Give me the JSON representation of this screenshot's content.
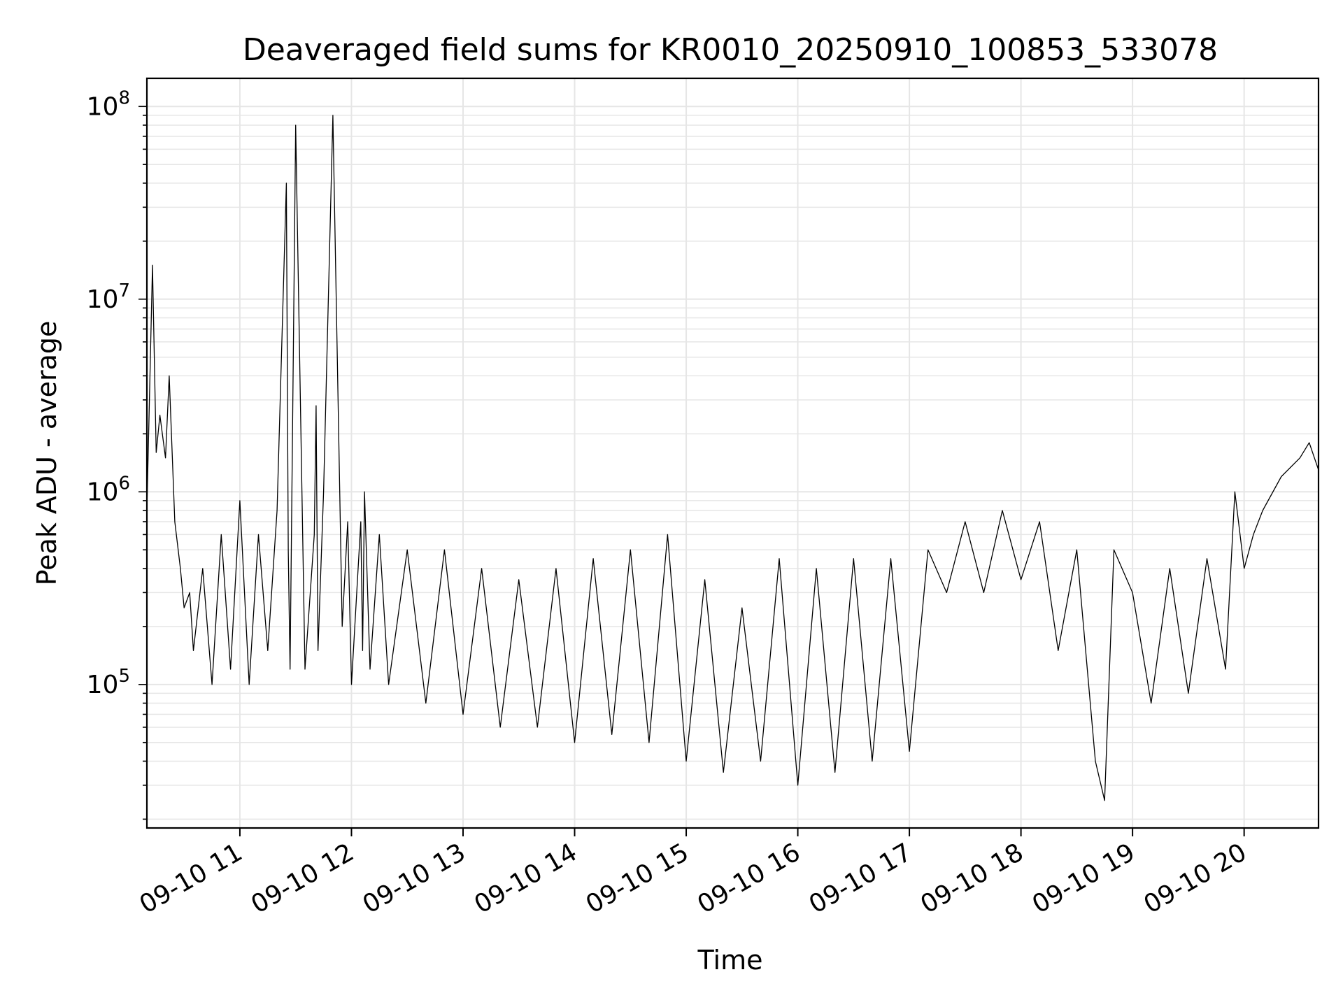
{
  "chart_data": {
    "type": "line",
    "title": "Deaveraged field sums for KR0010_20250910_100853_533078",
    "xlabel": "Time",
    "ylabel": "Peak ADU - average",
    "yscale": "log",
    "ylim": [
      18000,
      140000000
    ],
    "xlim": [
      "2025-09-10 10:10",
      "2025-09-10 20:40"
    ],
    "x_ticks": [
      "09-10 11",
      "09-10 12",
      "09-10 13",
      "09-10 14",
      "09-10 15",
      "09-10 16",
      "09-10 17",
      "09-10 18",
      "09-10 19",
      "09-10 20"
    ],
    "y_ticks": [
      {
        "base": "10",
        "exp": "5",
        "value": 100000
      },
      {
        "base": "10",
        "exp": "6",
        "value": 1000000
      },
      {
        "base": "10",
        "exp": "7",
        "value": 10000000
      },
      {
        "base": "10",
        "exp": "8",
        "value": 100000000
      }
    ],
    "grid": true,
    "line_color": "#000000",
    "grid_color": "#e6e6e6",
    "series": [
      {
        "x": [
          "10:10",
          "10:13",
          "10:15",
          "10:17",
          "10:20",
          "10:22",
          "10:25",
          "10:28",
          "10:30",
          "10:33",
          "10:35",
          "10:40",
          "10:45",
          "10:50",
          "10:55",
          "11:00",
          "11:05",
          "11:10",
          "11:15",
          "11:20",
          "11:25",
          "11:26",
          "11:27",
          "11:30",
          "11:35",
          "11:40",
          "11:41",
          "11:42",
          "11:45",
          "11:50",
          "11:55",
          "11:58",
          "12:00",
          "12:05",
          "12:06",
          "12:07",
          "12:10",
          "12:15",
          "12:20",
          "12:30",
          "12:40",
          "12:50",
          "13:00",
          "13:10",
          "13:20",
          "13:30",
          "13:40",
          "13:50",
          "14:00",
          "14:10",
          "14:20",
          "14:30",
          "14:40",
          "14:50",
          "15:00",
          "15:10",
          "15:20",
          "15:30",
          "15:40",
          "15:50",
          "16:00",
          "16:10",
          "16:20",
          "16:30",
          "16:40",
          "16:50",
          "17:00",
          "17:10",
          "17:20",
          "17:30",
          "17:40",
          "17:50",
          "18:00",
          "18:10",
          "18:20",
          "18:30",
          "18:40",
          "18:45",
          "18:50",
          "19:00",
          "19:10",
          "19:20",
          "19:30",
          "19:40",
          "19:50",
          "19:55",
          "20:00",
          "20:05",
          "20:10",
          "20:20",
          "20:30",
          "20:35",
          "20:40"
        ],
        "y": [
          800000,
          15000000,
          1600000,
          2500000,
          1500000,
          4000000,
          700000,
          400000,
          250000,
          300000,
          150000,
          400000,
          100000,
          600000,
          120000,
          900000,
          100000,
          600000,
          150000,
          800000,
          40000000,
          500000,
          120000,
          80000000,
          120000,
          600000,
          2800000,
          150000,
          1000000,
          90000000,
          200000,
          700000,
          100000,
          700000,
          150000,
          1000000,
          120000,
          600000,
          100000,
          500000,
          80000,
          500000,
          70000,
          400000,
          60000,
          350000,
          60000,
          400000,
          50000,
          450000,
          55000,
          500000,
          50000,
          600000,
          40000,
          350000,
          35000,
          250000,
          40000,
          450000,
          30000,
          400000,
          35000,
          450000,
          40000,
          450000,
          45000,
          500000,
          300000,
          700000,
          300000,
          800000,
          350000,
          700000,
          150000,
          500000,
          40000,
          25000,
          500000,
          300000,
          80000,
          400000,
          90000,
          450000,
          120000,
          1000000,
          400000,
          600000,
          800000,
          1200000,
          1500000,
          1800000,
          1300000
        ]
      }
    ]
  }
}
